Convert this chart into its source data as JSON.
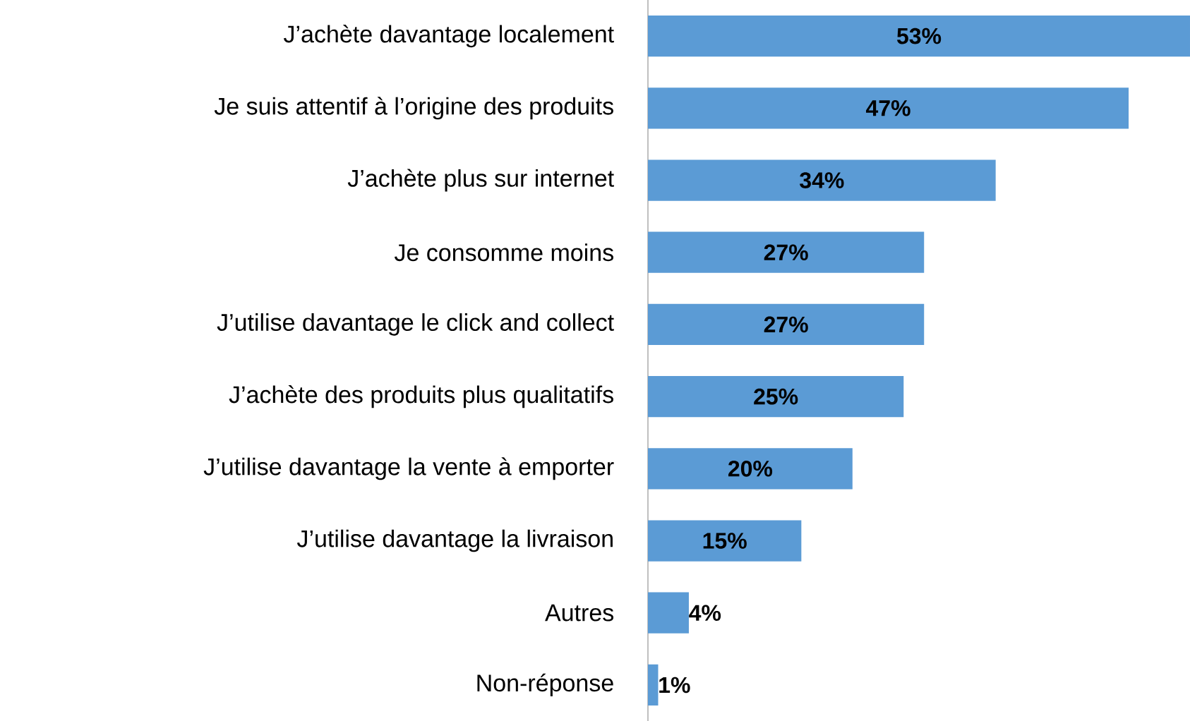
{
  "chart_data": {
    "type": "bar",
    "orientation": "horizontal",
    "color": "#5b9bd5",
    "categories": [
      "J’achète davantage localement",
      "Je suis attentif à l’origine des produits",
      "J’achète plus sur internet",
      "Je consomme moins",
      "J’utilise davantage le click and collect",
      "J’achète des produits plus qualitatifs",
      "J’utilise davantage la vente à emporter",
      "J’utilise davantage la livraison",
      "Autres",
      "Non-réponse"
    ],
    "values": [
      53,
      47,
      34,
      27,
      27,
      25,
      20,
      15,
      4,
      1
    ],
    "value_labels": [
      "53%",
      "47%",
      "34%",
      "27%",
      "27%",
      "25%",
      "20%",
      "15%",
      "4%",
      "1%"
    ]
  }
}
